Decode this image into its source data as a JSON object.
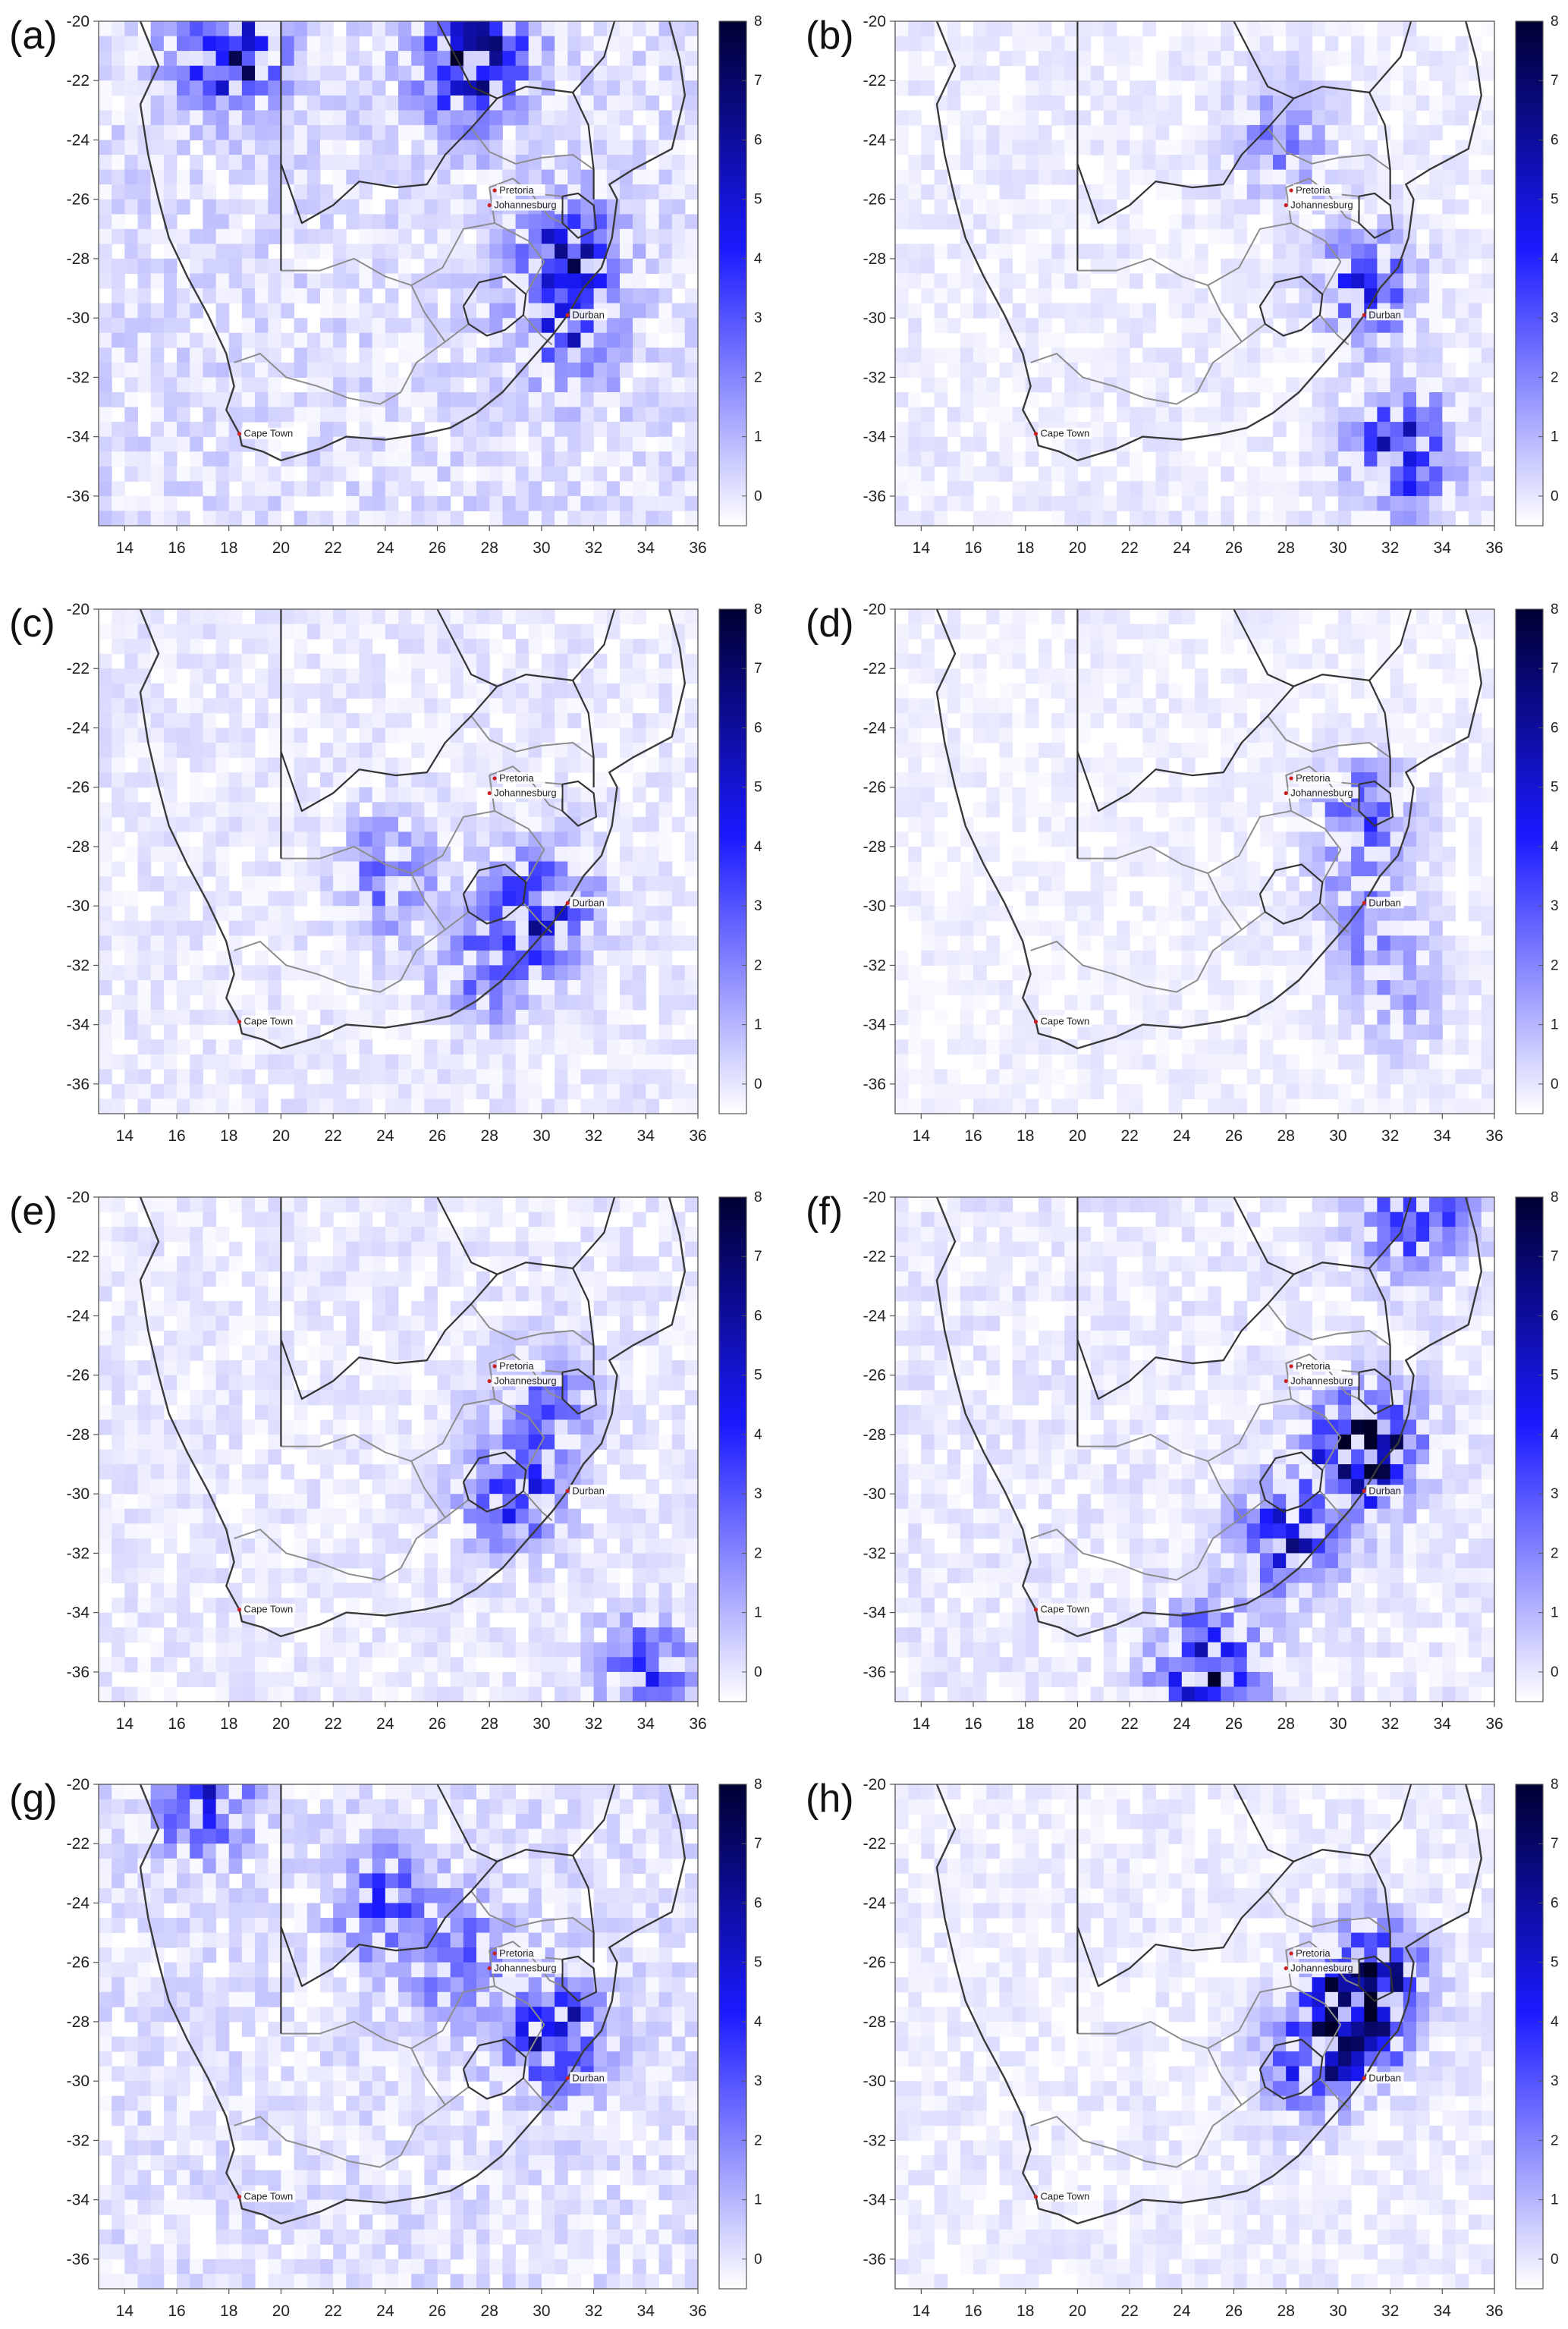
{
  "chart_data": {
    "type": "heatmap",
    "panel_labels": [
      "(a)",
      "(b)",
      "(c)",
      "(d)",
      "(e)",
      "(f)",
      "(g)",
      "(h)"
    ],
    "xlim": [
      13,
      36
    ],
    "ylim": [
      -37,
      -20
    ],
    "x_ticks": [
      14,
      16,
      18,
      20,
      22,
      24,
      26,
      28,
      30,
      32,
      34,
      36
    ],
    "y_ticks": [
      -20,
      -22,
      -24,
      -26,
      -28,
      -30,
      -32,
      -34,
      -36
    ],
    "colorbar": {
      "range": [
        -0.5,
        8
      ],
      "ticks": [
        0,
        1,
        2,
        3,
        4,
        5,
        6,
        7,
        8
      ],
      "low_color": "#ffffff",
      "mid_color": "#1a1aff",
      "high_color": "#000033"
    },
    "cities": [
      {
        "name": "Pretoria",
        "lon": 28.2,
        "lat": -25.7
      },
      {
        "name": "Johannesburg",
        "lon": 28.0,
        "lat": -26.2
      },
      {
        "name": "Durban",
        "lon": 31.0,
        "lat": -29.9
      },
      {
        "name": "Cape Town",
        "lon": 18.4,
        "lat": -33.9
      }
    ],
    "panels": [
      {
        "label": "(a)",
        "hotspots": [
          [
            18,
            -21,
            5.5
          ],
          [
            28,
            -20.5,
            4
          ],
          [
            31,
            -28,
            4.5
          ],
          [
            31,
            -30.5,
            3
          ],
          [
            27,
            -22,
            3
          ]
        ],
        "background": 0.9
      },
      {
        "label": "(b)",
        "hotspots": [
          [
            32.5,
            -34.5,
            5
          ],
          [
            31,
            -29,
            3.5
          ],
          [
            28,
            -24,
            2
          ]
        ],
        "background": 0.5
      },
      {
        "label": "(c)",
        "hotspots": [
          [
            30,
            -30,
            4
          ],
          [
            28,
            -32,
            2.5
          ],
          [
            24,
            -29,
            2.5
          ]
        ],
        "background": 0.6
      },
      {
        "label": "(d)",
        "hotspots": [
          [
            31,
            -27,
            3
          ],
          [
            31,
            -30.5,
            2
          ],
          [
            32.5,
            -33,
            1.5
          ]
        ],
        "background": 0.4
      },
      {
        "label": "(e)",
        "hotspots": [
          [
            29,
            -30,
            3.5
          ],
          [
            30,
            -27,
            2.5
          ],
          [
            34,
            -36,
            3
          ]
        ],
        "background": 0.6
      },
      {
        "label": "(f)",
        "hotspots": [
          [
            31,
            -28.5,
            7
          ],
          [
            28,
            -31.5,
            4
          ],
          [
            25,
            -36,
            5
          ],
          [
            33,
            -20.5,
            4
          ]
        ],
        "background": 0.6
      },
      {
        "label": "(g)",
        "hotspots": [
          [
            30.5,
            -28.5,
            4.5
          ],
          [
            17,
            -20.5,
            3.5
          ],
          [
            24,
            -24,
            3
          ],
          [
            27,
            -26,
            2.5
          ]
        ],
        "background": 0.8
      },
      {
        "label": "(h)",
        "hotspots": [
          [
            30.5,
            -28,
            5
          ],
          [
            31.5,
            -26.5,
            4.5
          ],
          [
            29,
            -29.5,
            3
          ]
        ],
        "background": 0.5
      }
    ]
  }
}
